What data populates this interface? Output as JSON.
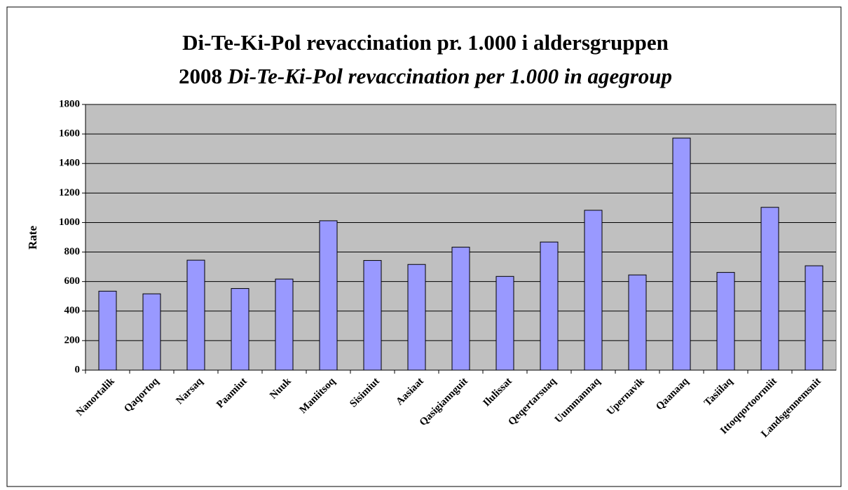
{
  "chart_data": {
    "type": "bar",
    "title": "Di-Te-Ki-Pol revaccination pr. 1.000 i aldersgruppen",
    "year": "2008",
    "subtitle": "Di-Te-Ki-Pol revaccination per 1.000 in agegroup",
    "y_label": "Rate",
    "categories": [
      "Nanortalik",
      "Qaqortoq",
      "Narsaq",
      "Paamiut",
      "Nuuk",
      "Maniitsoq",
      "Sisimiut",
      "Aasiaat",
      "Qasigiannguit",
      "Ilulissat",
      "Qeqertarsuaq",
      "Uummannaq",
      "Upernavik",
      "Qaanaaq",
      "Tasiilaq",
      "Ittoqqortoormiit",
      "Landsgennemsnit"
    ],
    "values": [
      535,
      517,
      745,
      553,
      617,
      1012,
      743,
      716,
      833,
      635,
      868,
      1083,
      645,
      1572,
      662,
      1103,
      707
    ],
    "color": "#9999ff",
    "ylim": [
      0,
      1800
    ],
    "yticks": [
      0,
      200,
      400,
      600,
      800,
      1000,
      1200,
      1400,
      1600,
      1800
    ],
    "grid": true
  }
}
